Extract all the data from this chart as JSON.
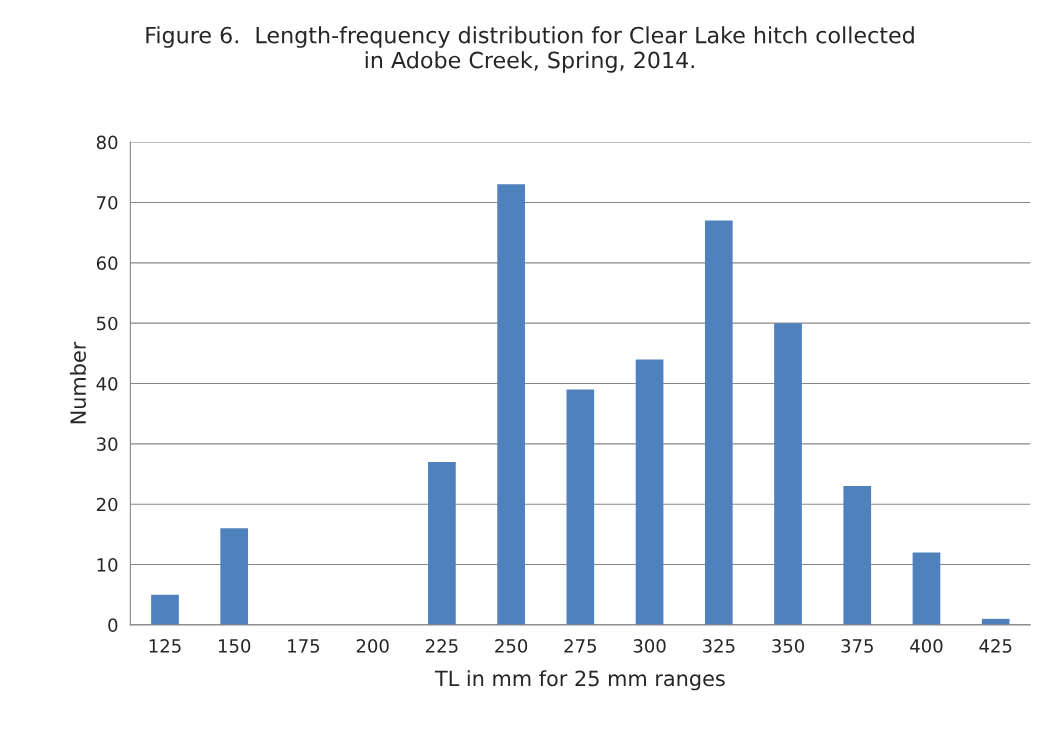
{
  "chart_data": {
    "type": "bar",
    "title": "Figure 6.  Length-frequency distribution for Clear Lake hitch collected\nin Adobe Creek, Spring, 2014.",
    "xlabel": "TL in mm for 25 mm ranges",
    "ylabel": "Number",
    "categories": [
      "125",
      "150",
      "175",
      "200",
      "225",
      "250",
      "275",
      "300",
      "325",
      "350",
      "375",
      "400",
      "425"
    ],
    "values": [
      5,
      16,
      0,
      0,
      27,
      73,
      39,
      44,
      67,
      50,
      23,
      12,
      1
    ],
    "color": "#4f81bd",
    "ylim": [
      0,
      80
    ],
    "yticks": [
      0,
      10,
      20,
      30,
      40,
      50,
      60,
      70,
      80
    ],
    "grid": "y"
  }
}
